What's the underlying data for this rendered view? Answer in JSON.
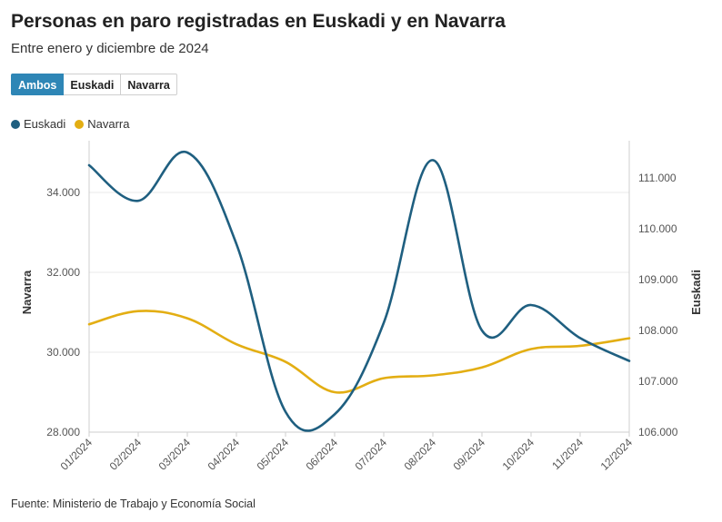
{
  "tabs": [
    "Ambos",
    "Euskadi",
    "Navarra"
  ],
  "active_tab": "Ambos",
  "footer": "Fuente: Ministerio de Trabajo y Economía Social",
  "colors": {
    "euskadi": "#1f5f80",
    "navarra": "#e3ae13",
    "tab_active": "#2e86b6",
    "grid": "#e8e8e8"
  },
  "chart_data": {
    "type": "line",
    "title": "Personas en paro registradas en Euskadi y en Navarra",
    "subtitle": "Entre enero y diciembre de 2024",
    "categories": [
      "01/2024",
      "02/2024",
      "03/2024",
      "04/2024",
      "05/2024",
      "06/2024",
      "07/2024",
      "08/2024",
      "09/2024",
      "10/2024",
      "11/2024",
      "12/2024"
    ],
    "left_axis": {
      "label": "Navarra",
      "min": 28000,
      "max": 35500,
      "ticks": [
        "28.000",
        "30.000",
        "32.000",
        "34.000"
      ],
      "tick_values": [
        28000,
        30000,
        32000,
        34000
      ]
    },
    "right_axis": {
      "label": "Euskadi",
      "min": 106000,
      "max": 111500,
      "ticks": [
        "106.000",
        "107.000",
        "108.000",
        "109.000",
        "110.000",
        "111.000"
      ],
      "tick_values": [
        106000,
        107000,
        108000,
        109000,
        110000,
        111000
      ]
    },
    "series": [
      {
        "name": "Euskadi",
        "axis": "right",
        "values": [
          111250,
          110550,
          111500,
          109700,
          106400,
          106350,
          108150,
          111350,
          108000,
          108500,
          107850,
          107400
        ]
      },
      {
        "name": "Navarra",
        "axis": "left",
        "values": [
          30700,
          31030,
          30850,
          30200,
          29760,
          29000,
          29350,
          29420,
          29620,
          30080,
          30160,
          30350
        ]
      }
    ],
    "legend": "top-left",
    "grid": true
  }
}
